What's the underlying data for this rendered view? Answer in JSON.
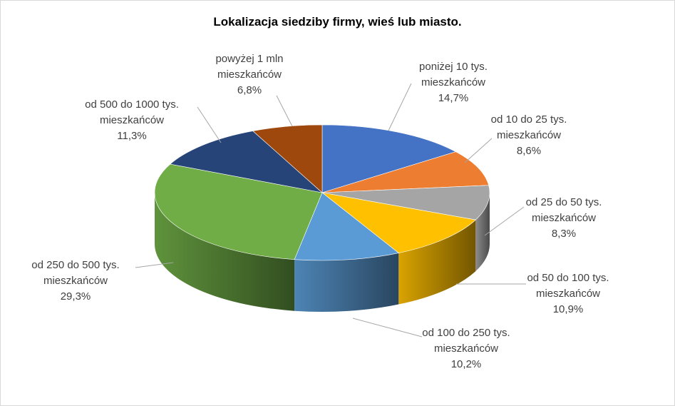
{
  "chart_data": {
    "type": "pie",
    "title": "Lokalizacja siedziby firmy, wieś lub miasto.",
    "slices": [
      {
        "label": [
          "poniżej 10 tys.",
          "mieszkańców"
        ],
        "value": 14.7,
        "value_text": "14,7%",
        "color": "#4472c4"
      },
      {
        "label": [
          "od 10 do 25 tys.",
          "mieszkańców"
        ],
        "value": 8.6,
        "value_text": "8,6%",
        "color": "#ed7d31"
      },
      {
        "label": [
          "od 25 do 50 tys.",
          "mieszkańców"
        ],
        "value": 8.3,
        "value_text": "8,3%",
        "color": "#a5a5a5"
      },
      {
        "label": [
          "od 50 do 100 tys.",
          "mieszkańców"
        ],
        "value": 10.9,
        "value_text": "10,9%",
        "color": "#ffc000"
      },
      {
        "label": [
          "od 100 do 250 tys.",
          "mieszkańców"
        ],
        "value": 10.2,
        "value_text": "10,2%",
        "color": "#5b9bd5"
      },
      {
        "label": [
          "od 250 do 500 tys.",
          "mieszkańców"
        ],
        "value": 29.3,
        "value_text": "29,3%",
        "color": "#70ad47"
      },
      {
        "label": [
          "od 500 do 1000 tys.",
          "mieszkańców"
        ],
        "value": 11.3,
        "value_text": "11,3%",
        "color": "#264478"
      },
      {
        "label": [
          "powyżej 1 mln",
          "mieszkańców"
        ],
        "value": 6.8,
        "value_text": "6,8%",
        "color": "#9e480e"
      }
    ]
  }
}
